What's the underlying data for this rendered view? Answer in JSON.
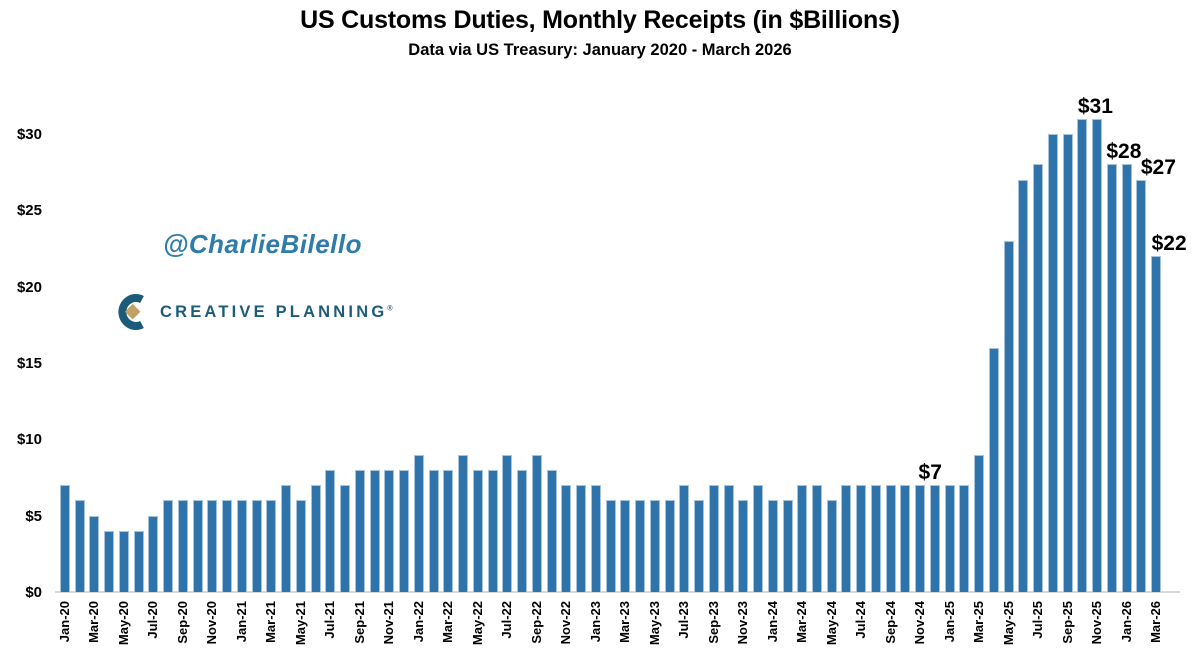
{
  "chart_data": {
    "type": "bar",
    "title": "US Customs Duties, Monthly Receipts (in $Billions)",
    "subtitle": "Data via US Treasury: January 2020 - March 2026",
    "xlabel": "",
    "ylabel": "",
    "grid": "off",
    "legend": "none",
    "ylim": [
      0,
      32.3
    ],
    "y_ticks": [
      0,
      5,
      10,
      15,
      20,
      25,
      30
    ],
    "y_tick_labels": [
      "$0",
      "$5",
      "$10",
      "$15",
      "$20",
      "$25",
      "$30"
    ],
    "x_tick_every": 2,
    "categories": [
      "Jan-20",
      "Feb-20",
      "Mar-20",
      "Apr-20",
      "May-20",
      "Jun-20",
      "Jul-20",
      "Aug-20",
      "Sep-20",
      "Oct-20",
      "Nov-20",
      "Dec-20",
      "Jan-21",
      "Feb-21",
      "Mar-21",
      "Apr-21",
      "May-21",
      "Jun-21",
      "Jul-21",
      "Aug-21",
      "Sep-21",
      "Oct-21",
      "Nov-21",
      "Dec-21",
      "Jan-22",
      "Feb-22",
      "Mar-22",
      "Apr-22",
      "May-22",
      "Jun-22",
      "Jul-22",
      "Aug-22",
      "Sep-22",
      "Oct-22",
      "Nov-22",
      "Dec-22",
      "Jan-23",
      "Feb-23",
      "Mar-23",
      "Apr-23",
      "May-23",
      "Jun-23",
      "Jul-23",
      "Aug-23",
      "Sep-23",
      "Oct-23",
      "Nov-23",
      "Dec-23",
      "Jan-24",
      "Feb-24",
      "Mar-24",
      "Apr-24",
      "May-24",
      "Jun-24",
      "Jul-24",
      "Aug-24",
      "Sep-24",
      "Oct-24",
      "Nov-24",
      "Dec-24",
      "Jan-25",
      "Feb-25",
      "Mar-25",
      "Apr-25",
      "May-25",
      "Jun-25",
      "Jul-25",
      "Aug-25",
      "Sep-25",
      "Oct-25",
      "Nov-25",
      "Dec-25",
      "Jan-26",
      "Feb-26",
      "Mar-26"
    ],
    "values": [
      7,
      6,
      5,
      4,
      4,
      4,
      5,
      6,
      6,
      6,
      6,
      6,
      6,
      6,
      6,
      7,
      6,
      7,
      8,
      7,
      8,
      8,
      8,
      8,
      9,
      8,
      8,
      9,
      8,
      8,
      9,
      8,
      9,
      8,
      7,
      7,
      7,
      6,
      6,
      6,
      6,
      6,
      7,
      6,
      7,
      7,
      6,
      7,
      6,
      6,
      7,
      7,
      6,
      7,
      7,
      7,
      7,
      7,
      7,
      7,
      7,
      7,
      9,
      16,
      23,
      27,
      28,
      30,
      30,
      31,
      31,
      28,
      28,
      27,
      22
    ],
    "annotations": [
      {
        "month": "Nov-24",
        "text": "$7",
        "dx": 10
      },
      {
        "month": "Oct-25",
        "text": "$31",
        "dx": 13
      },
      {
        "month": "Dec-25",
        "text": "$28",
        "dx": 12
      },
      {
        "month": "Feb-26",
        "text": "$27",
        "dx": 17
      },
      {
        "month": "Mar-26",
        "text": "$22",
        "dx": 13
      }
    ],
    "colors": {
      "bar_fill": "#2E74AB",
      "bar_border": "#A8C3DC",
      "axis_line": "#D8D8D8",
      "label_text": "#000000"
    }
  },
  "branding": {
    "watermark": "@CharlieBilello",
    "watermark_color": "#2F7CAB",
    "logo_text": "CREATIVE PLANNING",
    "logo_trademark": "®",
    "logo_text_color": "#1C5B7A",
    "logo_mark_color": "#1C5B7A",
    "logo_diamond_color": "#C2A164"
  }
}
